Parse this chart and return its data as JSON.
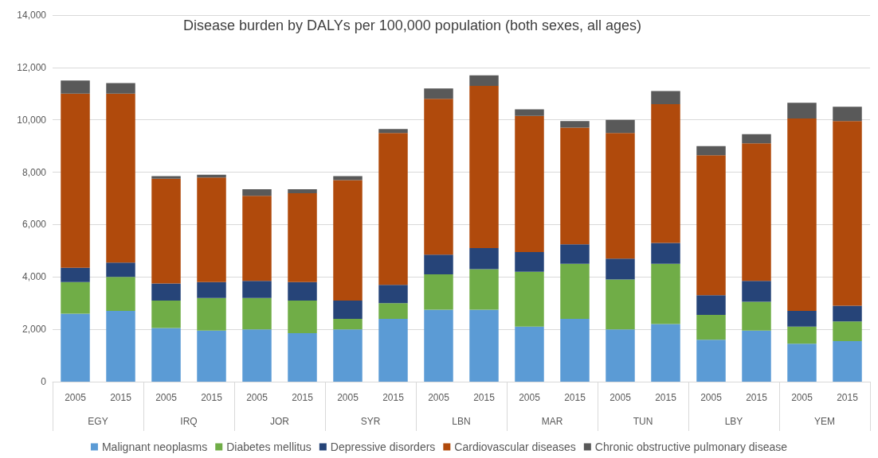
{
  "chart_data": {
    "type": "bar",
    "title": "Disease burden by DALYs per 100,000 population (both sexes, all ages)",
    "stacked": true,
    "categories": [
      "2005",
      "2015",
      "2005",
      "2015",
      "2005",
      "2015",
      "2005",
      "2015",
      "2005",
      "2015",
      "2005",
      "2015",
      "2005",
      "2015",
      "2005",
      "2015",
      "2005",
      "2015"
    ],
    "annotations": [
      "EGY",
      "IRQ",
      "JOR",
      "SYR",
      "LBN",
      "MAR",
      "TUN",
      "LBY",
      "YEM"
    ],
    "series": [
      {
        "name": "Malignant neoplasms",
        "color": "#5b9bd5",
        "values": [
          2600,
          2700,
          2050,
          1950,
          2000,
          1850,
          2000,
          2400,
          2750,
          2750,
          2100,
          2400,
          2000,
          2200,
          1600,
          1950,
          1450,
          1550
        ]
      },
      {
        "name": "Diabetes mellitus",
        "color": "#70ad47",
        "values": [
          1200,
          1300,
          1050,
          1250,
          1200,
          1250,
          400,
          600,
          1350,
          1550,
          2100,
          2100,
          1900,
          2300,
          950,
          1100,
          650,
          750
        ]
      },
      {
        "name": "Depressive disorders",
        "color": "#264478",
        "values": [
          550,
          550,
          650,
          600,
          650,
          700,
          700,
          700,
          750,
          800,
          750,
          750,
          800,
          800,
          750,
          800,
          600,
          600
        ]
      },
      {
        "name": "Cardiovascular diseases",
        "color": "#b04a0c",
        "values": [
          6650,
          6450,
          4000,
          4000,
          3250,
          3400,
          4600,
          5800,
          5950,
          6200,
          5200,
          4450,
          4800,
          5300,
          5350,
          5250,
          7350,
          7050
        ]
      },
      {
        "name": "Chronic obstructive pulmonary disease",
        "color": "#595959",
        "values": [
          500,
          400,
          100,
          100,
          250,
          150,
          150,
          150,
          400,
          400,
          250,
          250,
          500,
          500,
          350,
          350,
          600,
          550
        ]
      }
    ],
    "ylim": [
      0,
      14000
    ],
    "yticks": [
      0,
      {
        "value": 2000,
        "label": "2,000"
      },
      {
        "value": 4000,
        "label": "4,000"
      },
      {
        "value": 6000,
        "label": "6,000"
      },
      {
        "value": 8000,
        "label": "8,000"
      },
      {
        "value": 10000,
        "label": "10,000"
      },
      {
        "value": 12000,
        "label": "12,000"
      },
      {
        "value": 14000,
        "label": "14,000"
      }
    ],
    "grid": "y",
    "legend": "bottom"
  }
}
